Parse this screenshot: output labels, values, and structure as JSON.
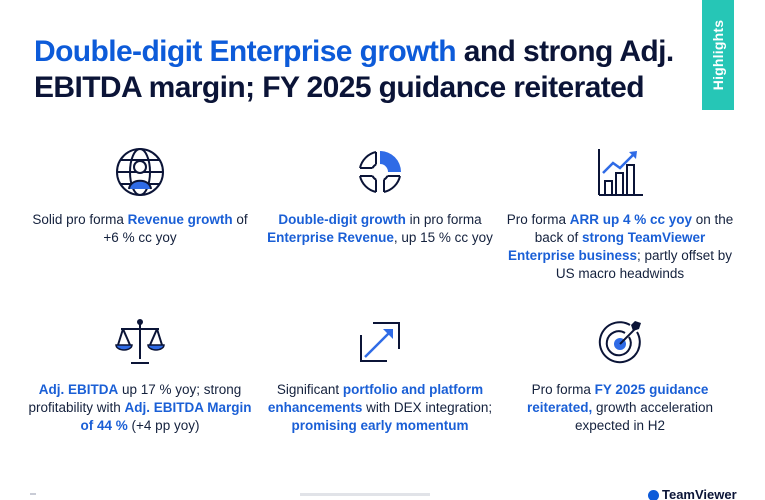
{
  "slide": {
    "title_accent": "Double-digit Enterprise growth",
    "title_rest": " and strong Adj. EBITDA margin; FY 2025 guidance reiterated",
    "side_tab": "Highlights"
  },
  "colors": {
    "accent_blue": "#1a5fd6",
    "navy": "#0b1437",
    "teal": "#26c6b6",
    "icon_blue": "#2f6be6"
  },
  "cards": [
    {
      "icon": "globe-person-icon",
      "parts": [
        "Solid pro forma ",
        "Revenue growth",
        " of +6 % cc yoy"
      ]
    },
    {
      "icon": "ring-chart-icon",
      "parts": [
        "Double-digit growth",
        " in pro forma ",
        "Enterprise Revenue",
        ", up 15 % cc yoy"
      ]
    },
    {
      "icon": "bar-chart-arrow-icon",
      "parts": [
        "Pro forma ",
        "ARR up 4 % cc yoy",
        " on the back of ",
        "strong TeamViewer Enterprise business",
        "; partly offset by US macro headwinds"
      ]
    },
    {
      "icon": "balance-scale-icon",
      "parts": [
        "Adj. EBITDA",
        " up 17 % yoy; strong profitability with ",
        "Adj. EBITDA Margin of 44 %",
        " (+4 pp yoy)"
      ]
    },
    {
      "icon": "expand-arrow-icon",
      "parts": [
        "Significant ",
        "portfolio and platform enhancements",
        " with DEX integration; ",
        "promising early momentum"
      ]
    },
    {
      "icon": "target-icon",
      "parts": [
        "Pro forma ",
        "FY 2025 guidance reiterated,",
        " growth acceleration expected in H2"
      ]
    }
  ],
  "footer": {
    "logo_text": "TeamViewer"
  }
}
